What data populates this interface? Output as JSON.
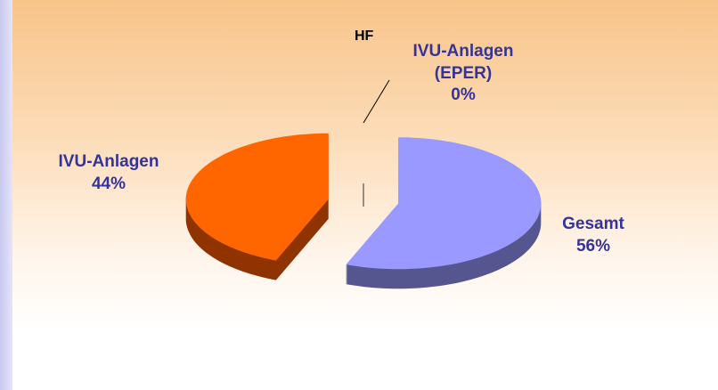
{
  "chart_data": {
    "type": "pie",
    "title": "HF",
    "categories": [
      "Gesamt",
      "IVU-Anlagen",
      "IVU-Anlagen (EPER)"
    ],
    "values": [
      56,
      44,
      0
    ],
    "value_labels": [
      "56%",
      "44%",
      "0%"
    ],
    "colors": [
      "#9999ff",
      "#ff6600",
      "#ffffff"
    ],
    "side_colors": [
      "#55558f",
      "#8f3300",
      "#666666"
    ]
  }
}
